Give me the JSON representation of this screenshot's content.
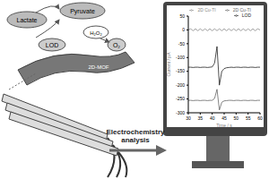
{
  "nodes": {
    "lactate": "Lactate",
    "pyruvate": "Pyruvate",
    "enzyme": "LOD",
    "peroxide": "H₂O₂",
    "oxygen": "O₂",
    "material": "2D-MOF"
  },
  "arrow_label": "Electrochemistry analysis",
  "chart_data": {
    "type": "line",
    "x_label": "Time / s",
    "y_label": "Current / pA",
    "x": [
      30,
      31,
      32,
      33,
      34,
      35,
      36,
      37,
      38,
      39,
      40,
      41,
      42,
      43,
      44,
      45,
      46,
      47,
      48,
      49,
      50,
      51,
      52,
      53,
      54,
      55,
      56,
      57,
      58,
      59,
      60
    ],
    "series": [
      {
        "name": "2D Cu-TI",
        "color": "#888888",
        "values": [
          0,
          4,
          -3,
          4,
          -3,
          4,
          -3,
          4,
          -3,
          4,
          -3,
          4,
          -3,
          4,
          -3,
          4,
          -3,
          4,
          -3,
          4,
          -3,
          4,
          -3,
          4,
          -3,
          4,
          -3,
          4,
          -3,
          4,
          0
        ]
      },
      {
        "name": "LOD",
        "color": "#222222",
        "values": [
          -135,
          -135,
          -136,
          -135,
          -135,
          -136,
          -135,
          -135,
          -136,
          -135,
          -134,
          -120,
          -60,
          -200,
          -150,
          -140,
          -137,
          -136,
          -135,
          -136,
          -135,
          -135,
          -136,
          -135,
          -135,
          -136,
          -135,
          -135,
          -136,
          -135,
          -135
        ]
      },
      {
        "name": "2D Cu-TI",
        "color": "#666666",
        "values": [
          -255,
          -255,
          -256,
          -255,
          -255,
          -256,
          -255,
          -255,
          -256,
          -255,
          -255,
          -248,
          -215,
          -290,
          -262,
          -257,
          -256,
          -255,
          -255,
          -256,
          -255,
          -255,
          -256,
          -255,
          -255,
          -256,
          -255,
          -255,
          -256,
          -255,
          -255
        ]
      }
    ],
    "xlim": [
      30,
      60
    ],
    "xticks": [
      30,
      35,
      40,
      45,
      50,
      55,
      60
    ],
    "ylim": [
      -300,
      50
    ],
    "yticks": [
      -300,
      -250,
      -200,
      -150,
      -100,
      -50,
      0,
      50
    ],
    "legend": "top"
  }
}
